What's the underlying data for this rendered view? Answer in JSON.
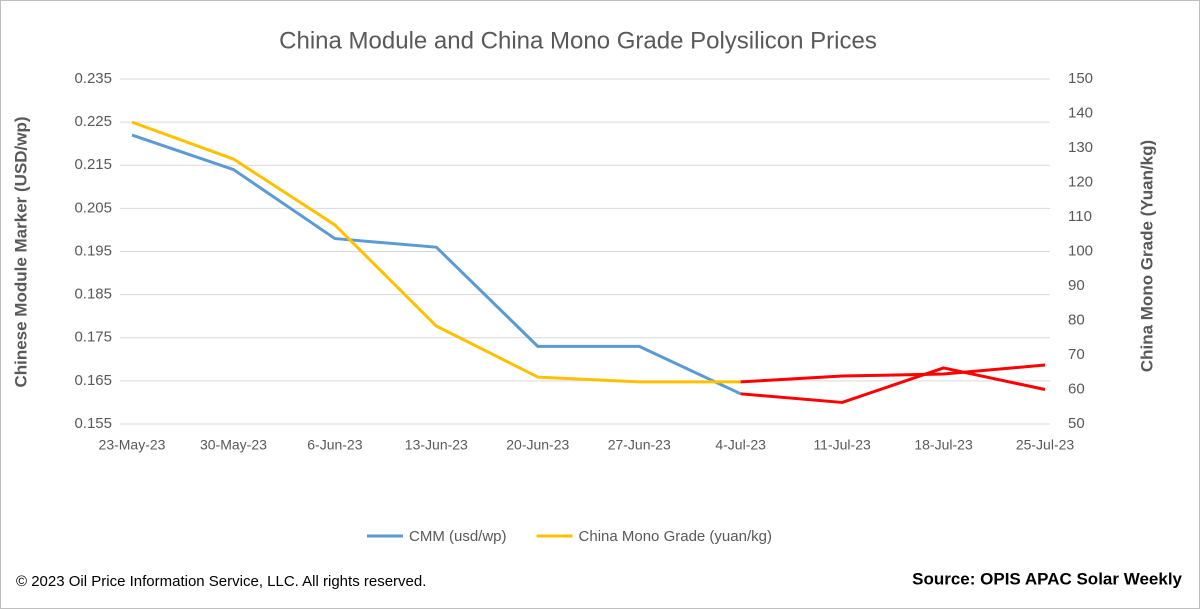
{
  "chart_data": {
    "type": "line",
    "title": "China Module and China Mono Grade Polysilicon Prices",
    "y_label": "Chinese Module Marker (USD/wp)",
    "y2_label": "China Mono Grade (Yuan/kg)",
    "categories": [
      "23-May-23",
      "30-May-23",
      "6-Jun-23",
      "13-Jun-23",
      "20-Jun-23",
      "27-Jun-23",
      "4-Jul-23",
      "11-Jul-23",
      "18-Jul-23",
      "25-Jul-23"
    ],
    "series": [
      {
        "name": "CMM (usd/wp)",
        "color": "#5b9bd5",
        "values": [
          0.222,
          0.214,
          0.198,
          0.196,
          0.173,
          0.173,
          0.162,
          0.16,
          0.168,
          0.163
        ]
      },
      {
        "name": "China Mono Grade (yuan/kg)",
        "color": "#ffc000",
        "axis": "y2",
        "values": [
          137.5,
          126.8,
          107.7,
          78.4,
          63.6,
          62.2,
          62.2,
          63.9,
          64.5,
          67.1
        ]
      }
    ],
    "highlight": {
      "from": "4-Jul-23",
      "color": "#ff0000"
    },
    "ylim": [
      0.155,
      0.235
    ],
    "yticks": [
      0.155,
      0.165,
      0.175,
      0.185,
      0.195,
      0.205,
      0.215,
      0.225,
      0.235
    ],
    "y2lim": [
      50,
      150
    ],
    "y2ticks": [
      50,
      60,
      70,
      80,
      90,
      100,
      110,
      120,
      130,
      140,
      150
    ],
    "grid": true,
    "legend": "bottom",
    "footer_left": "© 2023 Oil Price Information Service, LLC. All rights reserved.",
    "footer_right": "Source: OPIS APAC Solar Weekly"
  }
}
